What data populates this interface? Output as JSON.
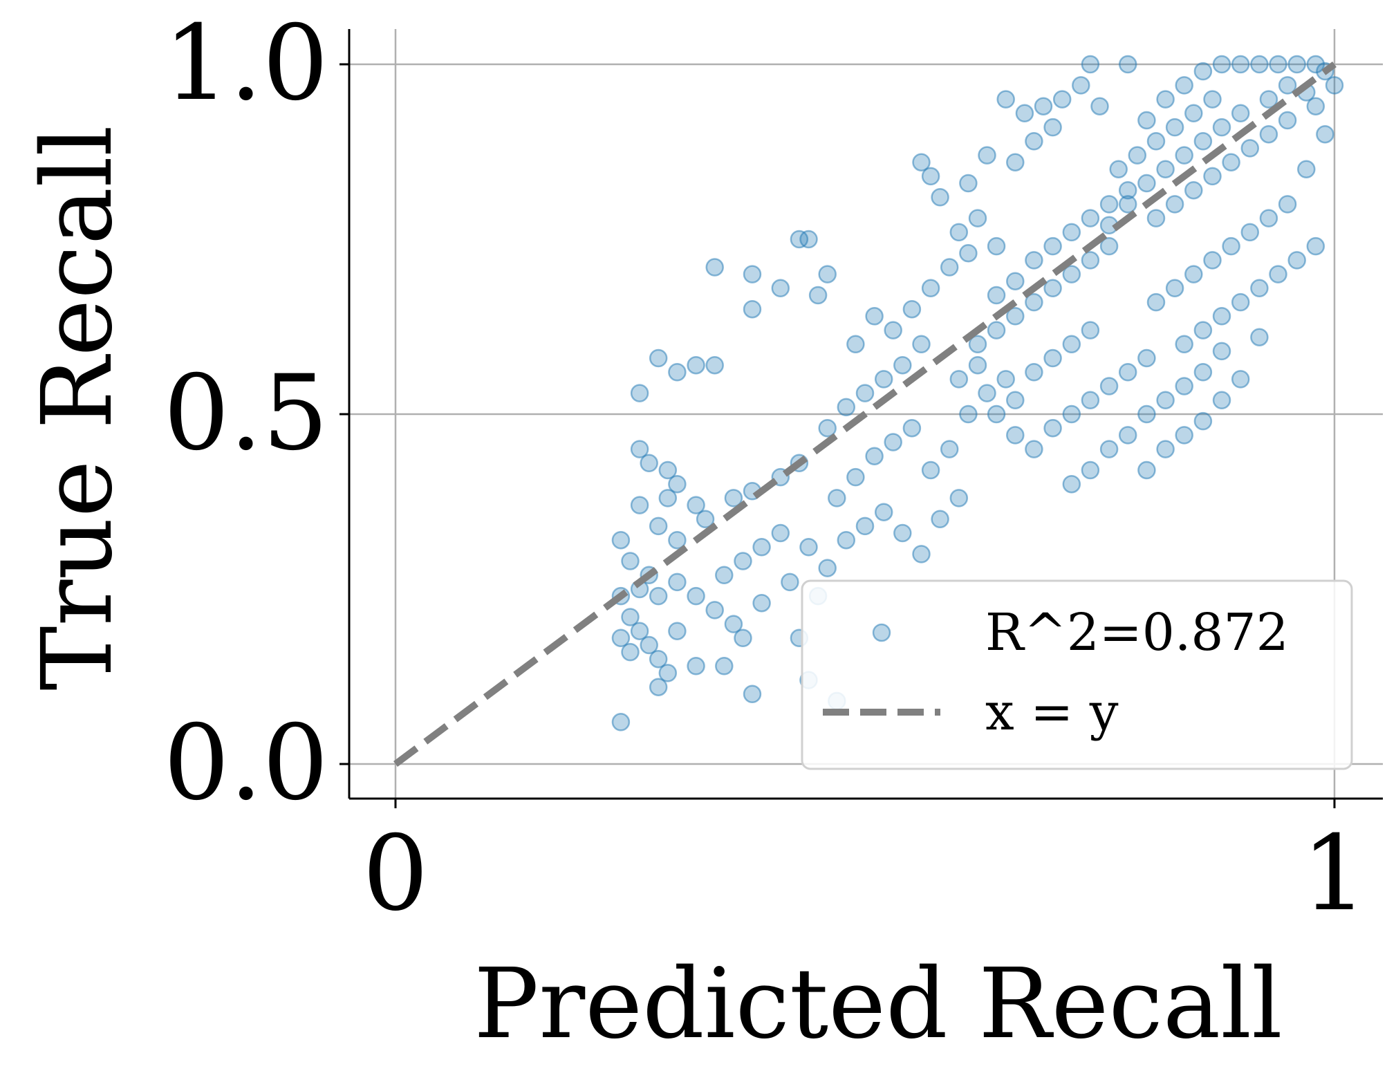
{
  "chart_data": {
    "type": "scatter",
    "xlabel": "Predicted Recall",
    "ylabel": "True Recall",
    "xlim": [
      -0.05,
      1.05
    ],
    "ylim": [
      -0.05,
      1.05
    ],
    "x_ticks": [
      0,
      1
    ],
    "x_tick_labels": [
      "0",
      "1"
    ],
    "y_ticks": [
      0.0,
      0.5,
      1.0
    ],
    "y_tick_labels": [
      "0.0",
      "0.5",
      "1.0"
    ],
    "grid": true,
    "legend_position": "lower-right",
    "colors": {
      "points": "#1f77b4",
      "reference_line": "#808080",
      "grid": "#b0b0b0"
    },
    "series": [
      {
        "name": "R^2=0.872",
        "kind": "scatter",
        "alpha": 0.3,
        "points": [
          [
            0.34,
            0.71
          ],
          [
            0.38,
            0.7
          ],
          [
            0.43,
            0.75
          ],
          [
            0.44,
            0.75
          ],
          [
            0.46,
            0.7
          ],
          [
            0.45,
            0.67
          ],
          [
            0.41,
            0.68
          ],
          [
            0.38,
            0.65
          ],
          [
            0.28,
            0.58
          ],
          [
            0.26,
            0.53
          ],
          [
            0.3,
            0.56
          ],
          [
            0.32,
            0.57
          ],
          [
            0.34,
            0.57
          ],
          [
            0.26,
            0.45
          ],
          [
            0.27,
            0.43
          ],
          [
            0.29,
            0.42
          ],
          [
            0.3,
            0.4
          ],
          [
            0.29,
            0.38
          ],
          [
            0.32,
            0.37
          ],
          [
            0.33,
            0.35
          ],
          [
            0.36,
            0.38
          ],
          [
            0.38,
            0.39
          ],
          [
            0.41,
            0.41
          ],
          [
            0.43,
            0.43
          ],
          [
            0.26,
            0.37
          ],
          [
            0.28,
            0.34
          ],
          [
            0.3,
            0.32
          ],
          [
            0.24,
            0.32
          ],
          [
            0.25,
            0.29
          ],
          [
            0.27,
            0.27
          ],
          [
            0.26,
            0.25
          ],
          [
            0.28,
            0.24
          ],
          [
            0.3,
            0.26
          ],
          [
            0.32,
            0.24
          ],
          [
            0.34,
            0.22
          ],
          [
            0.36,
            0.2
          ],
          [
            0.35,
            0.27
          ],
          [
            0.37,
            0.29
          ],
          [
            0.39,
            0.31
          ],
          [
            0.41,
            0.33
          ],
          [
            0.24,
            0.24
          ],
          [
            0.25,
            0.21
          ],
          [
            0.26,
            0.19
          ],
          [
            0.27,
            0.17
          ],
          [
            0.28,
            0.15
          ],
          [
            0.29,
            0.13
          ],
          [
            0.24,
            0.18
          ],
          [
            0.25,
            0.16
          ],
          [
            0.24,
            0.06
          ],
          [
            0.28,
            0.11
          ],
          [
            0.3,
            0.19
          ],
          [
            0.32,
            0.14
          ],
          [
            0.38,
            0.1
          ],
          [
            0.44,
            0.12
          ],
          [
            0.45,
            0.24
          ],
          [
            0.47,
            0.09
          ],
          [
            0.35,
            0.14
          ],
          [
            0.37,
            0.18
          ],
          [
            0.39,
            0.23
          ],
          [
            0.42,
            0.26
          ],
          [
            0.43,
            0.18
          ],
          [
            0.44,
            0.31
          ],
          [
            0.46,
            0.28
          ],
          [
            0.48,
            0.32
          ],
          [
            0.5,
            0.34
          ],
          [
            0.47,
            0.38
          ],
          [
            0.49,
            0.41
          ],
          [
            0.51,
            0.44
          ],
          [
            0.53,
            0.46
          ],
          [
            0.55,
            0.48
          ],
          [
            0.52,
            0.36
          ],
          [
            0.54,
            0.33
          ],
          [
            0.56,
            0.3
          ],
          [
            0.58,
            0.35
          ],
          [
            0.6,
            0.38
          ],
          [
            0.57,
            0.42
          ],
          [
            0.59,
            0.45
          ],
          [
            0.61,
            0.5
          ],
          [
            0.63,
            0.53
          ],
          [
            0.65,
            0.55
          ],
          [
            0.46,
            0.48
          ],
          [
            0.48,
            0.51
          ],
          [
            0.5,
            0.53
          ],
          [
            0.52,
            0.55
          ],
          [
            0.54,
            0.57
          ],
          [
            0.56,
            0.6
          ],
          [
            0.49,
            0.6
          ],
          [
            0.51,
            0.64
          ],
          [
            0.53,
            0.62
          ],
          [
            0.55,
            0.65
          ],
          [
            0.57,
            0.68
          ],
          [
            0.59,
            0.71
          ],
          [
            0.61,
            0.73
          ],
          [
            0.6,
            0.76
          ],
          [
            0.62,
            0.78
          ],
          [
            0.64,
            0.74
          ],
          [
            0.58,
            0.81
          ],
          [
            0.57,
            0.84
          ],
          [
            0.56,
            0.86
          ],
          [
            0.61,
            0.83
          ],
          [
            0.63,
            0.87
          ],
          [
            0.66,
            0.86
          ],
          [
            0.68,
            0.89
          ],
          [
            0.67,
            0.93
          ],
          [
            0.65,
            0.95
          ],
          [
            0.69,
            0.94
          ],
          [
            0.71,
            0.95
          ],
          [
            0.7,
            0.91
          ],
          [
            0.74,
            1.0
          ],
          [
            0.78,
            1.0
          ],
          [
            0.73,
            0.97
          ],
          [
            0.75,
            0.94
          ],
          [
            0.64,
            0.67
          ],
          [
            0.66,
            0.69
          ],
          [
            0.68,
            0.72
          ],
          [
            0.7,
            0.74
          ],
          [
            0.72,
            0.76
          ],
          [
            0.74,
            0.78
          ],
          [
            0.76,
            0.8
          ],
          [
            0.78,
            0.82
          ],
          [
            0.62,
            0.6
          ],
          [
            0.64,
            0.62
          ],
          [
            0.66,
            0.64
          ],
          [
            0.68,
            0.66
          ],
          [
            0.7,
            0.68
          ],
          [
            0.72,
            0.7
          ],
          [
            0.74,
            0.72
          ],
          [
            0.76,
            0.74
          ],
          [
            0.6,
            0.55
          ],
          [
            0.62,
            0.57
          ],
          [
            0.64,
            0.5
          ],
          [
            0.66,
            0.52
          ],
          [
            0.68,
            0.56
          ],
          [
            0.7,
            0.58
          ],
          [
            0.72,
            0.6
          ],
          [
            0.74,
            0.62
          ],
          [
            0.66,
            0.47
          ],
          [
            0.68,
            0.45
          ],
          [
            0.7,
            0.48
          ],
          [
            0.72,
            0.5
          ],
          [
            0.74,
            0.52
          ],
          [
            0.76,
            0.54
          ],
          [
            0.78,
            0.56
          ],
          [
            0.8,
            0.58
          ],
          [
            0.72,
            0.4
          ],
          [
            0.74,
            0.42
          ],
          [
            0.76,
            0.45
          ],
          [
            0.78,
            0.47
          ],
          [
            0.8,
            0.5
          ],
          [
            0.82,
            0.52
          ],
          [
            0.84,
            0.54
          ],
          [
            0.86,
            0.56
          ],
          [
            0.8,
            0.42
          ],
          [
            0.82,
            0.45
          ],
          [
            0.84,
            0.47
          ],
          [
            0.86,
            0.49
          ],
          [
            0.88,
            0.52
          ],
          [
            0.9,
            0.55
          ],
          [
            0.88,
            0.59
          ],
          [
            0.92,
            0.61
          ],
          [
            0.77,
            0.85
          ],
          [
            0.79,
            0.87
          ],
          [
            0.81,
            0.89
          ],
          [
            0.83,
            0.91
          ],
          [
            0.85,
            0.93
          ],
          [
            0.87,
            0.95
          ],
          [
            0.8,
            0.92
          ],
          [
            0.82,
            0.95
          ],
          [
            0.84,
            0.97
          ],
          [
            0.86,
            0.99
          ],
          [
            0.88,
            1.0
          ],
          [
            0.9,
            1.0
          ],
          [
            0.92,
            1.0
          ],
          [
            0.94,
            1.0
          ],
          [
            0.96,
            1.0
          ],
          [
            0.98,
            1.0
          ],
          [
            0.81,
            0.78
          ],
          [
            0.83,
            0.8
          ],
          [
            0.85,
            0.82
          ],
          [
            0.87,
            0.84
          ],
          [
            0.89,
            0.86
          ],
          [
            0.91,
            0.88
          ],
          [
            0.93,
            0.9
          ],
          [
            0.95,
            0.92
          ],
          [
            0.81,
            0.66
          ],
          [
            0.83,
            0.68
          ],
          [
            0.85,
            0.7
          ],
          [
            0.87,
            0.72
          ],
          [
            0.89,
            0.74
          ],
          [
            0.91,
            0.76
          ],
          [
            0.93,
            0.78
          ],
          [
            0.95,
            0.8
          ],
          [
            0.84,
            0.6
          ],
          [
            0.86,
            0.62
          ],
          [
            0.88,
            0.64
          ],
          [
            0.9,
            0.66
          ],
          [
            0.92,
            0.68
          ],
          [
            0.94,
            0.7
          ],
          [
            0.96,
            0.72
          ],
          [
            0.98,
            0.74
          ],
          [
            0.97,
            0.85
          ],
          [
            0.99,
            0.9
          ],
          [
            0.98,
            0.94
          ],
          [
            1.0,
            0.97
          ],
          [
            0.99,
            0.99
          ],
          [
            0.97,
            0.96
          ],
          [
            0.95,
            0.97
          ],
          [
            0.93,
            0.95
          ],
          [
            0.9,
            0.93
          ],
          [
            0.88,
            0.91
          ],
          [
            0.86,
            0.89
          ],
          [
            0.84,
            0.87
          ],
          [
            0.82,
            0.85
          ],
          [
            0.8,
            0.83
          ],
          [
            0.78,
            0.8
          ],
          [
            0.76,
            0.77
          ]
        ]
      },
      {
        "name": "x = y",
        "kind": "line",
        "style": "dashed",
        "points": [
          [
            0,
            0
          ],
          [
            1,
            1
          ]
        ]
      }
    ]
  }
}
